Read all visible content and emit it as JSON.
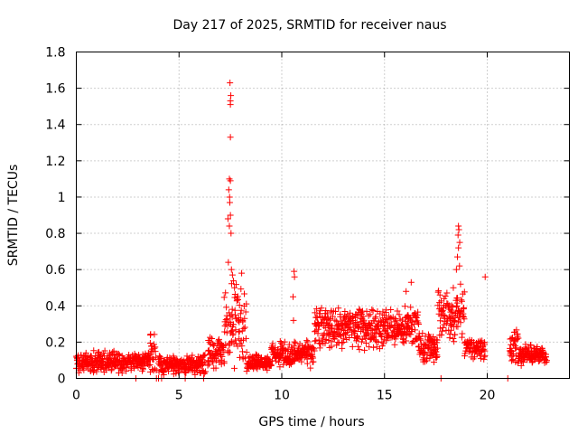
{
  "chart_data": {
    "type": "scatter",
    "title": "Day 217 of 2025, SRMTID for receiver naus",
    "xlabel": "GPS time / hours",
    "ylabel": "SRMTID / TECUs",
    "xlim": [
      0,
      24
    ],
    "ylim": [
      0,
      1.8
    ],
    "xticks": [
      "0",
      "5",
      "10",
      "15",
      "20"
    ],
    "yticks": [
      "0",
      "0.2",
      "0.4",
      "0.6",
      "0.8",
      "1",
      "1.2",
      "1.4",
      "1.6",
      "1.8"
    ],
    "grid": true,
    "marker": "+",
    "color": "#ff0000",
    "segments": [
      {
        "x_start": 0.0,
        "x_end": 3.6,
        "base": 0.09,
        "spread": 0.04
      },
      {
        "x_start": 3.6,
        "x_end": 3.9,
        "base": 0.14,
        "spread": 0.08
      },
      {
        "x_start": 4.0,
        "x_end": 6.3,
        "base": 0.08,
        "spread": 0.04
      },
      {
        "x_start": 6.4,
        "x_end": 7.2,
        "base": 0.14,
        "spread": 0.06
      },
      {
        "x_start": 7.2,
        "x_end": 8.3,
        "base": 0.3,
        "spread": 0.18
      },
      {
        "x_start": 8.3,
        "x_end": 9.5,
        "base": 0.09,
        "spread": 0.03
      },
      {
        "x_start": 9.5,
        "x_end": 11.6,
        "base": 0.13,
        "spread": 0.05
      },
      {
        "x_start": 11.6,
        "x_end": 16.7,
        "base": 0.28,
        "spread": 0.08
      },
      {
        "x_start": 16.7,
        "x_end": 17.6,
        "base": 0.17,
        "spread": 0.06
      },
      {
        "x_start": 17.6,
        "x_end": 18.9,
        "base": 0.34,
        "spread": 0.1
      },
      {
        "x_start": 18.9,
        "x_end": 19.9,
        "base": 0.17,
        "spread": 0.05
      },
      {
        "x_start": 21.1,
        "x_end": 21.6,
        "base": 0.18,
        "spread": 0.08
      },
      {
        "x_start": 21.6,
        "x_end": 22.9,
        "base": 0.13,
        "spread": 0.04
      }
    ],
    "outliers": [
      {
        "x": 7.48,
        "y": 1.63
      },
      {
        "x": 7.52,
        "y": 1.56
      },
      {
        "x": 7.5,
        "y": 1.53
      },
      {
        "x": 7.5,
        "y": 1.51
      },
      {
        "x": 7.5,
        "y": 1.33
      },
      {
        "x": 7.45,
        "y": 1.1
      },
      {
        "x": 7.5,
        "y": 1.09
      },
      {
        "x": 7.42,
        "y": 1.04
      },
      {
        "x": 7.46,
        "y": 1.0
      },
      {
        "x": 7.47,
        "y": 0.97
      },
      {
        "x": 7.5,
        "y": 0.9
      },
      {
        "x": 7.38,
        "y": 0.88
      },
      {
        "x": 7.45,
        "y": 0.84
      },
      {
        "x": 7.53,
        "y": 0.8
      },
      {
        "x": 7.4,
        "y": 0.64
      },
      {
        "x": 7.55,
        "y": 0.6
      },
      {
        "x": 7.6,
        "y": 0.57
      },
      {
        "x": 7.7,
        "y": 0.5
      },
      {
        "x": 10.6,
        "y": 0.59
      },
      {
        "x": 10.62,
        "y": 0.56
      },
      {
        "x": 10.55,
        "y": 0.45
      },
      {
        "x": 10.57,
        "y": 0.32
      },
      {
        "x": 16.3,
        "y": 0.53
      },
      {
        "x": 16.05,
        "y": 0.48
      },
      {
        "x": 18.6,
        "y": 0.84
      },
      {
        "x": 18.62,
        "y": 0.82
      },
      {
        "x": 18.58,
        "y": 0.79
      },
      {
        "x": 18.66,
        "y": 0.75
      },
      {
        "x": 18.6,
        "y": 0.72
      },
      {
        "x": 18.55,
        "y": 0.67
      },
      {
        "x": 18.65,
        "y": 0.62
      },
      {
        "x": 18.5,
        "y": 0.6
      },
      {
        "x": 18.7,
        "y": 0.52
      },
      {
        "x": 18.35,
        "y": 0.5
      },
      {
        "x": 17.7,
        "y": 0.46
      },
      {
        "x": 17.9,
        "y": 0.44
      },
      {
        "x": 19.9,
        "y": 0.56
      }
    ],
    "zero_values": [
      2.9,
      3.9,
      4.0,
      4.15,
      5.3,
      6.2,
      17.75,
      21.0
    ]
  }
}
